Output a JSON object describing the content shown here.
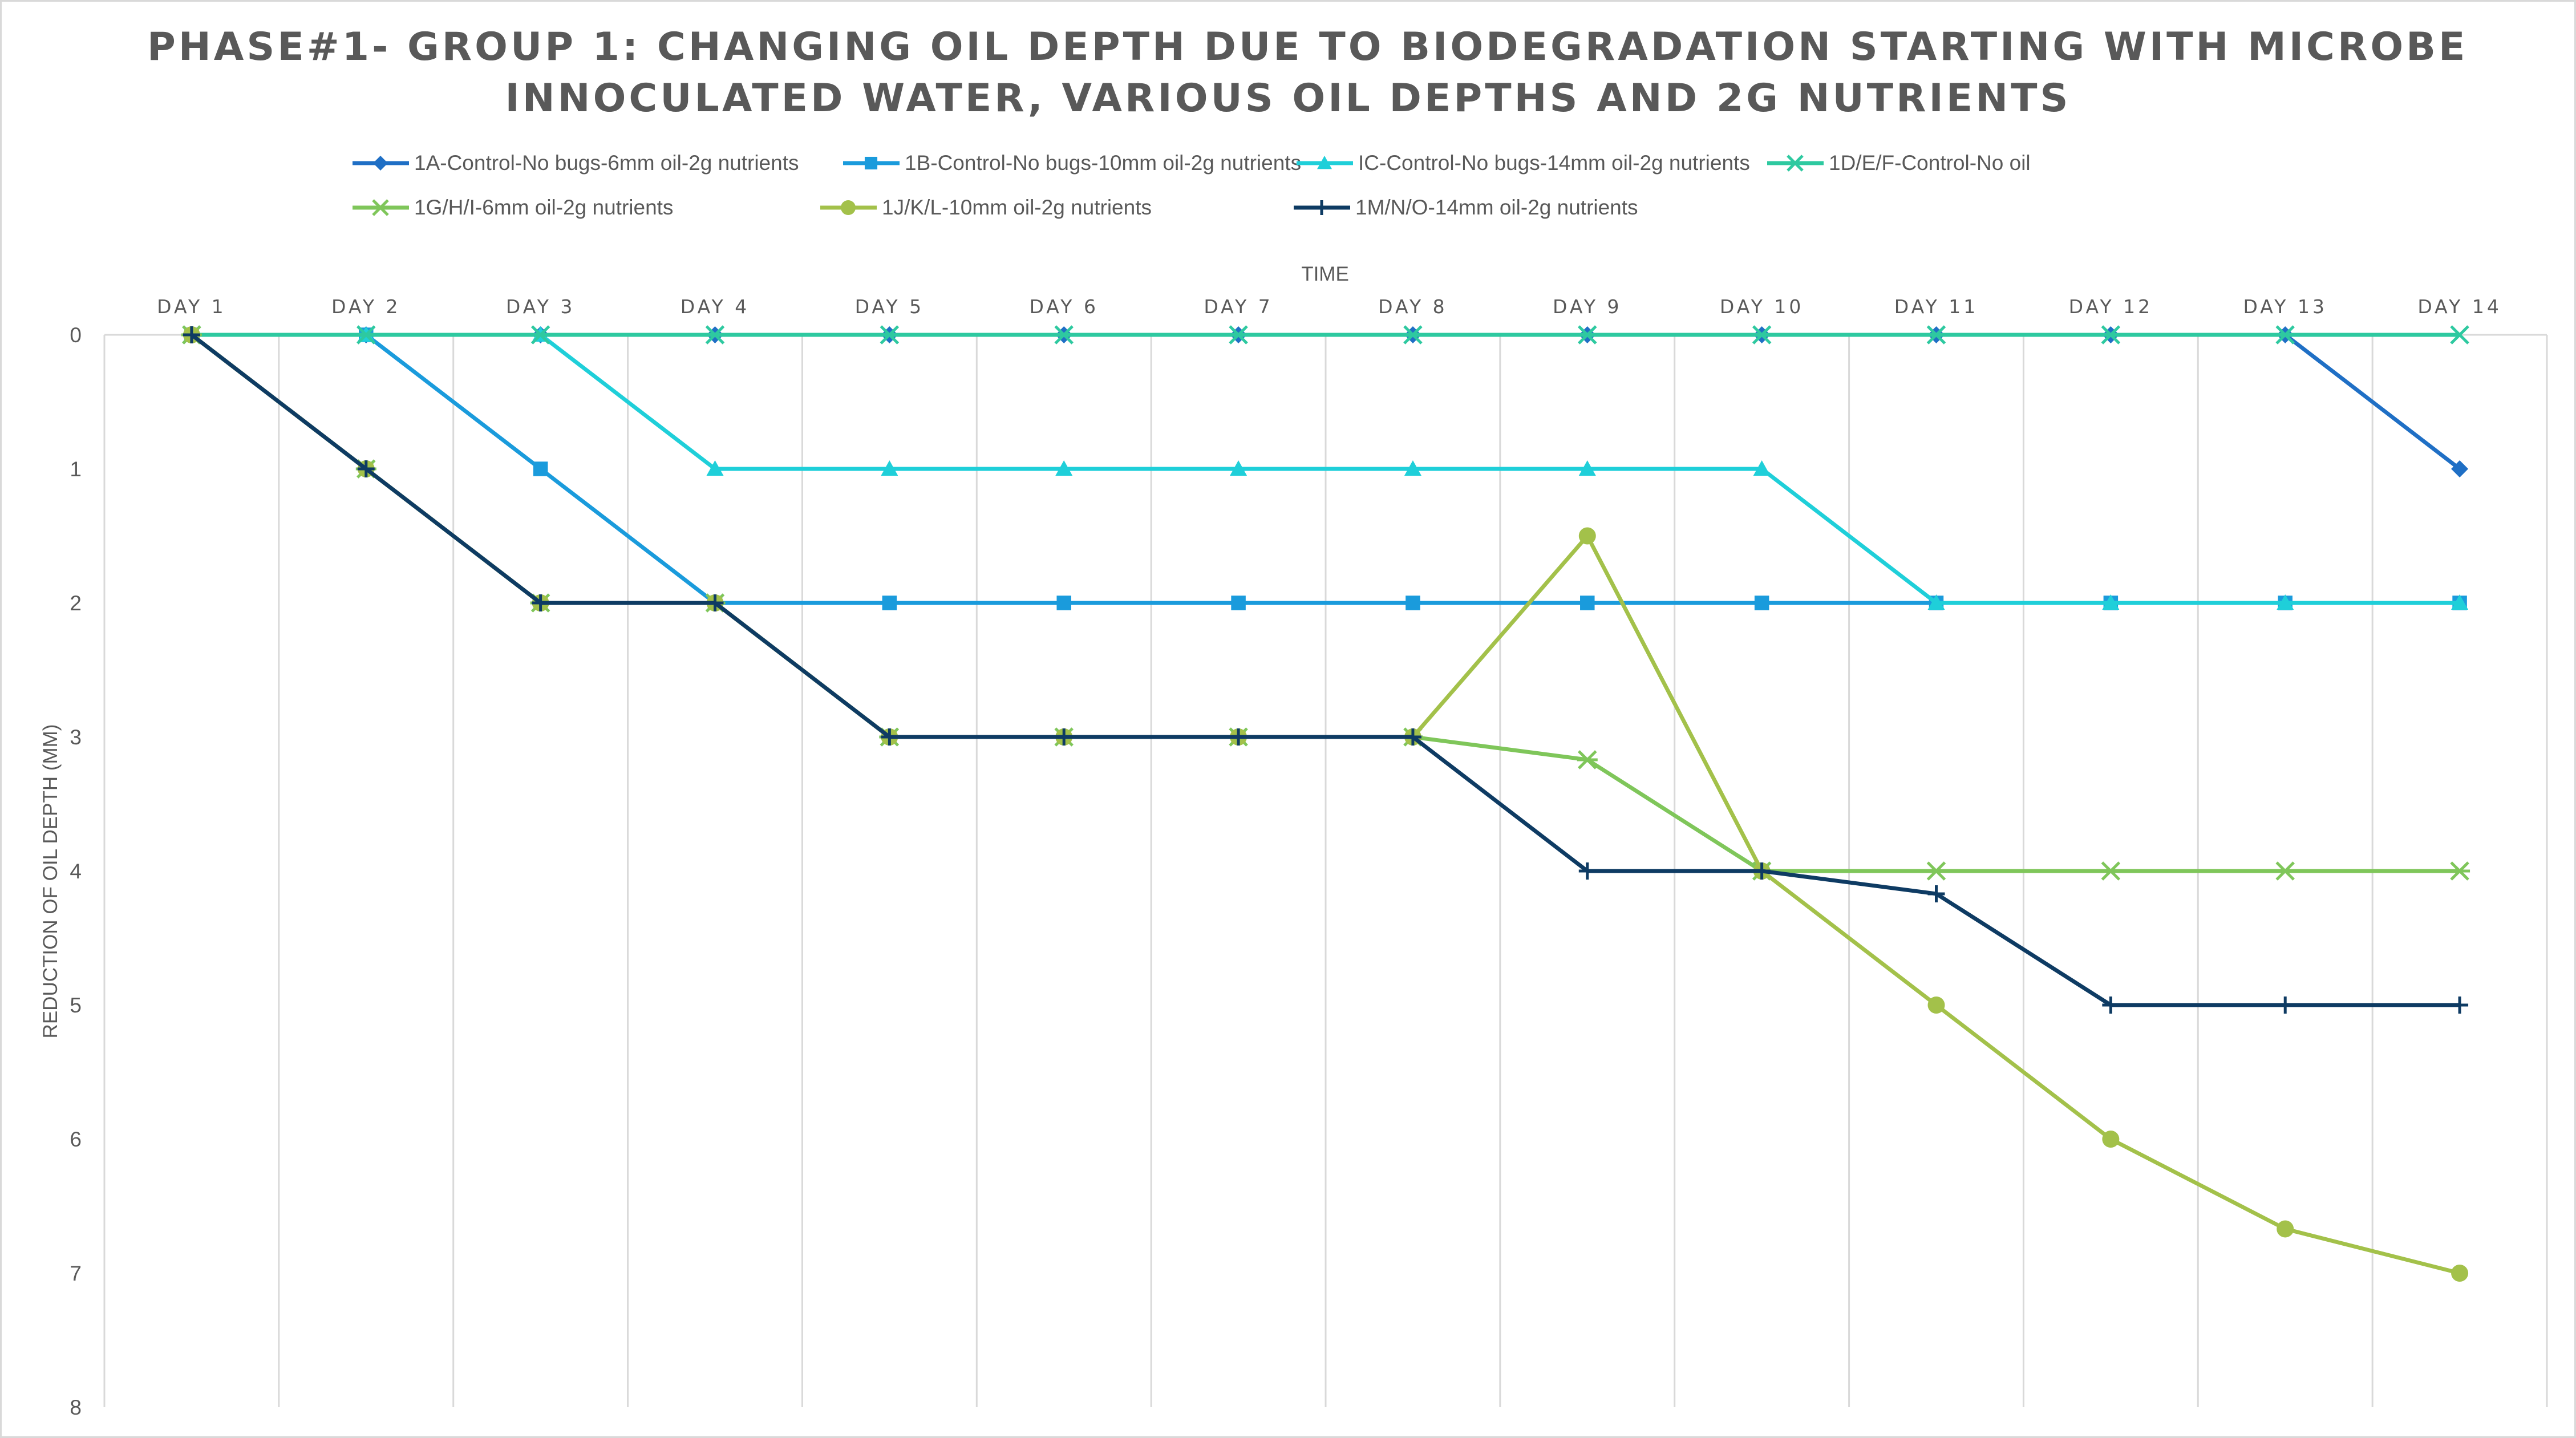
{
  "chart_data": {
    "type": "line",
    "title_lines": [
      "PHASE#1- GROUP 1: CHANGING OIL DEPTH DUE TO BIODEGRADATION STARTING WITH MICROBE",
      "INNOCULATED WATER, VARIOUS OIL DEPTHS AND 2G NUTRIENTS"
    ],
    "xlabel": "TIME",
    "ylabel": "REDUCTION OF OIL DEPTH (MM)",
    "categories": [
      "DAY 1",
      "DAY 2",
      "DAY 3",
      "DAY 4",
      "DAY 5",
      "DAY 6",
      "DAY 7",
      "DAY 8",
      "DAY 9",
      "DAY 10",
      "DAY 11",
      "DAY 12",
      "DAY 13",
      "DAY 14"
    ],
    "y_ticks": [
      "0",
      "1",
      "2",
      "3",
      "4",
      "5",
      "6",
      "7",
      "8"
    ],
    "ylim": [
      0,
      8
    ],
    "y_inverted": true,
    "x_axis_position": "top",
    "grid": "vertical",
    "legend_position": "top",
    "series": [
      {
        "name": "1A-Control-No bugs-6mm oil-2g nutrients",
        "color": "#1f6fc5",
        "marker": "diamond",
        "values": [
          0,
          0,
          0,
          0,
          0,
          0,
          0,
          0,
          0,
          0,
          0,
          0,
          0,
          1
        ]
      },
      {
        "name": "1B-Control-No bugs-10mm oil-2g nutrients",
        "color": "#1a9bdc",
        "marker": "square",
        "values": [
          0,
          0,
          1,
          2,
          2,
          2,
          2,
          2,
          2,
          2,
          2,
          2,
          2,
          2
        ]
      },
      {
        "name": "IC-Control-No bugs-14mm oil-2g nutrients",
        "color": "#1fcfd9",
        "marker": "triangle",
        "values": [
          0,
          0,
          0,
          1,
          1,
          1,
          1,
          1,
          1,
          1,
          2,
          2,
          2,
          2
        ]
      },
      {
        "name": "1D/E/F-Control-No oil",
        "color": "#2ec9a0",
        "marker": "x",
        "values": [
          0,
          0,
          0,
          0,
          0,
          0,
          0,
          0,
          0,
          0,
          0,
          0,
          0,
          0
        ]
      },
      {
        "name": "1G/H/I-6mm oil-2g nutrients",
        "color": "#7fc65a",
        "marker": "star",
        "values": [
          0,
          1,
          2,
          2,
          3,
          3,
          3,
          3,
          3.17,
          4,
          4,
          4,
          4,
          4
        ]
      },
      {
        "name": "1J/K/L-10mm oil-2g nutrients",
        "color": "#a3c14a",
        "marker": "circle",
        "values": [
          0,
          1,
          2,
          2,
          3,
          3,
          3,
          3,
          1.5,
          4,
          5,
          6,
          6.67,
          7
        ]
      },
      {
        "name": "1M/N/O-14mm oil-2g nutrients",
        "color": "#0e3b63",
        "marker": "plus",
        "values": [
          0,
          1,
          2,
          2,
          3,
          3,
          3,
          3,
          4,
          4,
          4.17,
          5,
          5,
          5
        ]
      }
    ]
  }
}
